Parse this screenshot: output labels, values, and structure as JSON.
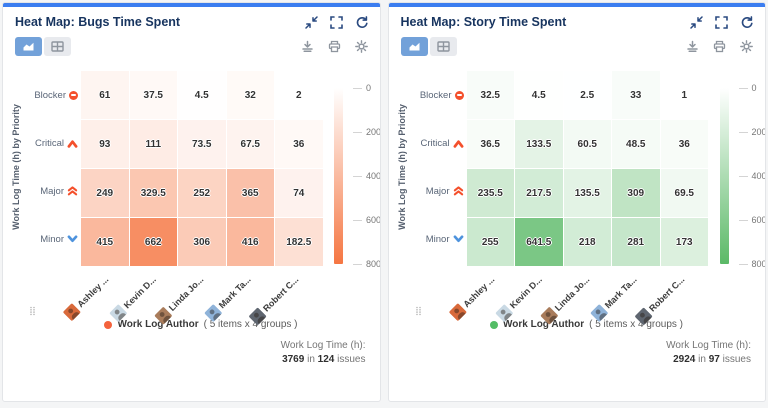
{
  "panels": [
    {
      "title": "Heat Map: Bugs Time Spent",
      "legend": {
        "dot_color": "#f4623c",
        "label": "Work Log Author",
        "detail": "( 5 items x 4 groups )"
      },
      "summary": {
        "label": "Work Log Time (h):",
        "total": "3769",
        "infix": "in",
        "count": "124",
        "suffix": "issues"
      }
    },
    {
      "title": "Heat Map: Story Time Spent",
      "legend": {
        "dot_color": "#53bd66",
        "label": "Work Log Author",
        "detail": "( 5 items x 4 groups )"
      },
      "summary": {
        "label": "Work Log Time (h):",
        "total": "2924",
        "infix": "in",
        "count": "97",
        "suffix": "issues"
      }
    }
  ],
  "icons": {
    "header": [
      "collapse-icon",
      "fullscreen-icon",
      "refresh-icon"
    ],
    "toolbar": [
      "download-icon",
      "print-icon",
      "settings-gear-icon"
    ],
    "view_toggle": [
      "chart-view-icon",
      "table-view-icon"
    ],
    "priority": [
      "blocker-icon",
      "critical-icon",
      "major-icon",
      "minor-icon"
    ],
    "header_color": "#2a4a80",
    "toolbar_color": "#8e959e"
  },
  "chart_data": [
    {
      "type": "heatmap",
      "title": "Heat Map: Bugs Time Spent",
      "x_categories": [
        "Ashley ...",
        "Kevin D...",
        "Linda Jo...",
        "Mark Ta...",
        "Robert C..."
      ],
      "y_categories": [
        "Blocker",
        "Critical",
        "Major",
        "Minor"
      ],
      "y_icons": [
        "blocker",
        "critical",
        "major",
        "minor"
      ],
      "values": [
        [
          61,
          37.5,
          4.5,
          32,
          2
        ],
        [
          93,
          111,
          73.5,
          67.5,
          36
        ],
        [
          249,
          329.5,
          252,
          365,
          74
        ],
        [
          415,
          662,
          306,
          416,
          182.5
        ]
      ],
      "ylabel": "Work Log Time (h) by Priority",
      "legend": "Work Log Author ( 5 items x 4 groups )",
      "total_label": "Work Log Time (h): 3769 in 124 issues",
      "colorbar": {
        "min": 0,
        "max": 800,
        "ticks": [
          0,
          200,
          400,
          600,
          800
        ],
        "low_color": "#ffffff",
        "high_color": "#f57642"
      },
      "avatar_colors": [
        "#d96a3b",
        "#c9d9e4",
        "#a97c5b",
        "#8fb3d9",
        "#5f6670"
      ]
    },
    {
      "type": "heatmap",
      "title": "Heat Map: Story Time Spent",
      "x_categories": [
        "Ashley ...",
        "Kevin D...",
        "Linda Jo...",
        "Mark Ta...",
        "Robert C..."
      ],
      "y_categories": [
        "Blocker",
        "Critical",
        "Major",
        "Minor"
      ],
      "y_icons": [
        "blocker",
        "critical",
        "major",
        "minor"
      ],
      "values": [
        [
          32.5,
          4.5,
          2.5,
          33,
          1
        ],
        [
          36.5,
          133.5,
          60.5,
          48.5,
          36
        ],
        [
          235.5,
          217.5,
          135.5,
          309,
          69.5
        ],
        [
          255,
          641.5,
          218,
          281,
          173
        ]
      ],
      "ylabel": "Work Log Time (h) by Priority",
      "legend": "Work Log Author ( 5 items x 4 groups )",
      "total_label": "Work Log Time (h): 2924 in 97 issues",
      "colorbar": {
        "min": 0,
        "max": 800,
        "ticks": [
          0,
          200,
          400,
          600,
          800
        ],
        "low_color": "#ffffff",
        "high_color": "#5bb967"
      },
      "avatar_colors": [
        "#d96a3b",
        "#c9d9e4",
        "#a97c5b",
        "#8fb3d9",
        "#5f6670"
      ]
    }
  ]
}
